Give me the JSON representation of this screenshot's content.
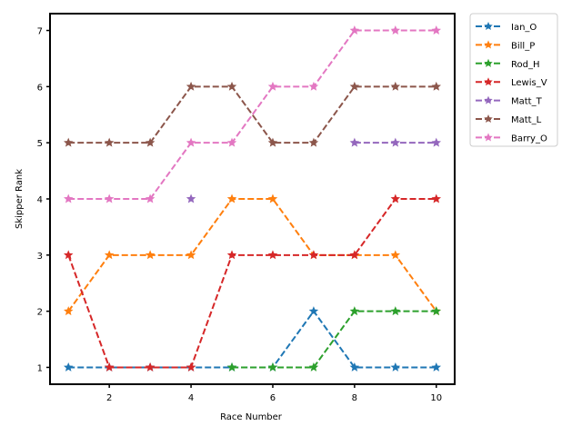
{
  "chart_data": {
    "type": "line",
    "title": "",
    "xlabel": "Race Number",
    "ylabel": "Skipper Rank",
    "x": [
      1,
      2,
      3,
      4,
      5,
      6,
      7,
      8,
      9,
      10
    ],
    "xlim": [
      0.55,
      10.45
    ],
    "ylim": [
      0.7,
      7.3
    ],
    "xticks": [
      2,
      4,
      6,
      8,
      10
    ],
    "yticks": [
      1,
      2,
      3,
      4,
      5,
      6,
      7
    ],
    "grid": false,
    "legend_position": "outside upper right",
    "line_style": "dashed",
    "marker": "star",
    "series": [
      {
        "name": "Ian_O",
        "color": "#1f77b4",
        "values": [
          1,
          1,
          1,
          1,
          1,
          1,
          2,
          1,
          1,
          1
        ]
      },
      {
        "name": "Bill_P",
        "color": "#ff7f0e",
        "values": [
          2,
          3,
          3,
          3,
          4,
          4,
          3,
          3,
          3,
          2
        ]
      },
      {
        "name": "Rod_H",
        "color": "#2ca02c",
        "values": [
          null,
          null,
          null,
          null,
          1,
          1,
          1,
          2,
          2,
          2
        ]
      },
      {
        "name": "Lewis_V",
        "color": "#d62728",
        "values": [
          3,
          1,
          1,
          1,
          3,
          3,
          3,
          3,
          4,
          4
        ]
      },
      {
        "name": "Matt_T",
        "color": "#9467bd",
        "values": [
          null,
          null,
          null,
          4,
          null,
          null,
          null,
          5,
          5,
          5
        ]
      },
      {
        "name": "Matt_L",
        "color": "#8c564b",
        "values": [
          5,
          5,
          5,
          6,
          6,
          5,
          5,
          6,
          6,
          6
        ]
      },
      {
        "name": "Barry_O",
        "color": "#e377c2",
        "values": [
          4,
          4,
          4,
          5,
          5,
          6,
          6,
          7,
          7,
          7
        ]
      }
    ]
  }
}
